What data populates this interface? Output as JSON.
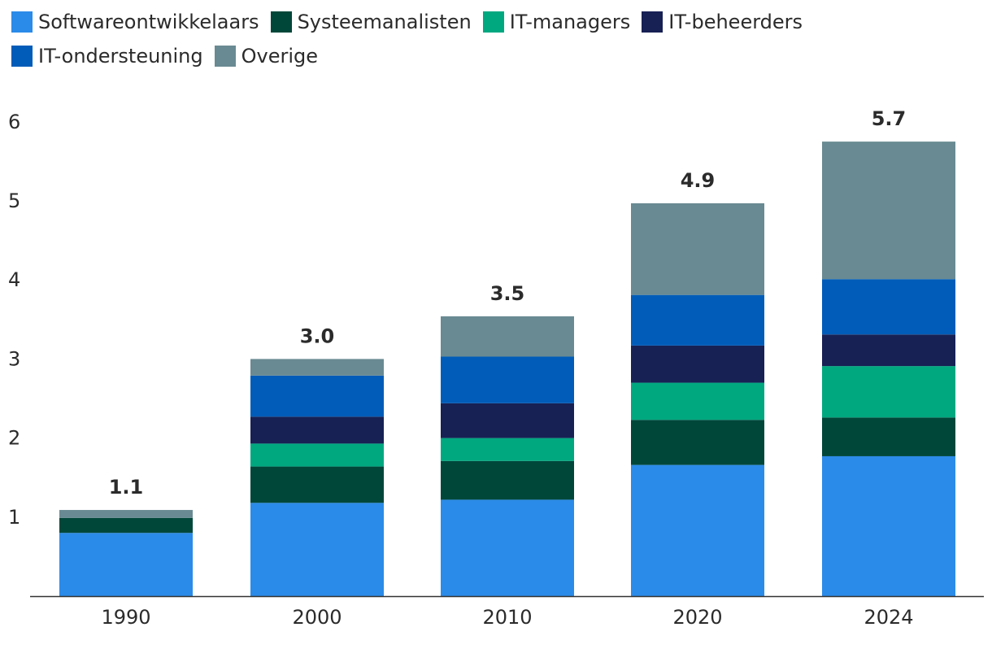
{
  "chart_data": {
    "type": "bar",
    "stacked": true,
    "title": "",
    "xlabel": "",
    "ylabel": "",
    "ylim": [
      0,
      6
    ],
    "yticks": [
      1,
      2,
      3,
      4,
      5,
      6
    ],
    "grid": false,
    "legend_position": "top",
    "categories": [
      "1990",
      "2000",
      "2010",
      "2020",
      "2024"
    ],
    "totals": [
      "1.1",
      "3.0",
      "3.5",
      "4.9",
      "5.7"
    ],
    "series": [
      {
        "name": "Softwareontwikkelaars",
        "color": "#2b8be8",
        "values": [
          0.8,
          1.18,
          1.22,
          1.66,
          1.77
        ]
      },
      {
        "name": "Systeemanalisten",
        "color": "#00473a",
        "values": [
          0.19,
          0.46,
          0.49,
          0.57,
          0.49
        ]
      },
      {
        "name": "IT-managers",
        "color": "#00a880",
        "values": [
          0.0,
          0.29,
          0.29,
          0.47,
          0.65
        ]
      },
      {
        "name": "IT-beheerders",
        "color": "#172154",
        "values": [
          0.0,
          0.34,
          0.44,
          0.47,
          0.4
        ]
      },
      {
        "name": "IT-ondersteuning",
        "color": "#005cb8",
        "values": [
          0.0,
          0.52,
          0.59,
          0.64,
          0.7
        ]
      },
      {
        "name": "Overige",
        "color": "#698a92",
        "values": [
          0.1,
          0.21,
          0.51,
          1.16,
          1.74
        ]
      }
    ]
  }
}
